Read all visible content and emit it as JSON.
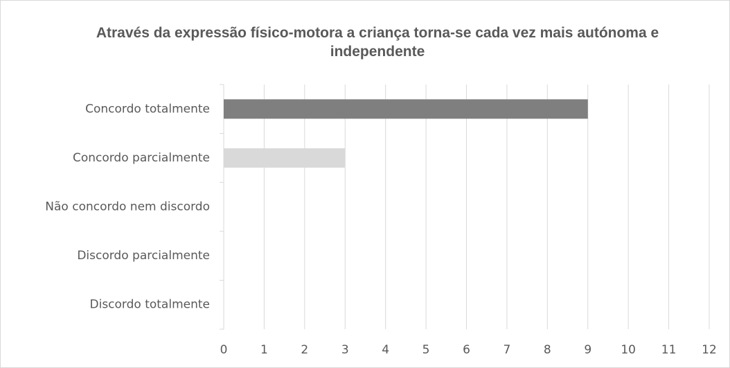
{
  "chart_data": {
    "type": "bar",
    "orientation": "horizontal",
    "title": "Através da expressão físico-motora a criança torna-se cada vez mais autónoma e independente",
    "categories": [
      "Concordo totalmente",
      "Concordo parcialmente",
      "Não concordo nem discordo",
      "Discordo parcialmente",
      "Discordo totalmente"
    ],
    "values": [
      9,
      3,
      0,
      0,
      0
    ],
    "colors": [
      "#7f7f7f",
      "#d9d9d9",
      "#a5a5a5",
      "#a5a5a5",
      "#a5a5a5"
    ],
    "xlim": [
      0,
      12
    ],
    "xticks": [
      0,
      1,
      2,
      3,
      4,
      5,
      6,
      7,
      8,
      9,
      10,
      11,
      12
    ],
    "grid": true
  }
}
